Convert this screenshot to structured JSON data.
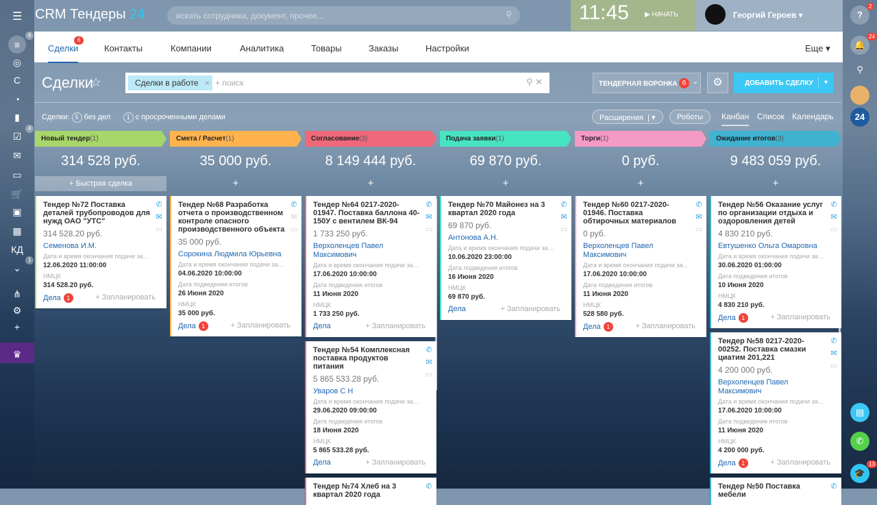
{
  "app": {
    "logo": "CRM Тендеры",
    "logo_num": "24",
    "search_placeholder": "искать сотрудника, документ, прочее...",
    "clock": "11:45",
    "start": "НАЧАТЬ",
    "user": "Георгий Героев"
  },
  "leftbar": {
    "items": [
      {
        "icon": "filter-icon",
        "badge": "6"
      },
      {
        "icon": "target-icon"
      },
      {
        "icon": "letter-c-icon",
        "label": "С"
      },
      {
        "icon": "clock-icon"
      },
      {
        "icon": "chart-icon"
      },
      {
        "icon": "tasks-icon",
        "badge": "4"
      },
      {
        "icon": "mail-icon"
      },
      {
        "icon": "cash-register-icon"
      },
      {
        "icon": "cart-icon"
      },
      {
        "icon": "window-icon"
      },
      {
        "icon": "grid-icon"
      },
      {
        "icon": "kd-icon",
        "label": "КД"
      },
      {
        "icon": "chevron-circle-icon",
        "badge": "1"
      },
      {
        "icon": "sitemap-icon"
      },
      {
        "icon": "gear-icon"
      },
      {
        "icon": "plus-icon"
      },
      {
        "icon": "crown-icon"
      }
    ]
  },
  "rightbar": {
    "help_badge": "2",
    "notif_badge": "24",
    "b24": "24",
    "bottom_badge": "13"
  },
  "tabs": {
    "items": [
      "Сделки",
      "Контакты",
      "Компании",
      "Аналитика",
      "Товары",
      "Заказы",
      "Настройки"
    ],
    "badge": "6",
    "more": "Еще"
  },
  "toolbar": {
    "title": "Сделки",
    "chip": "Сделки в работе",
    "search_placeholder": "+ поиск",
    "funnel": "ТЕНДЕРНАЯ ВОРОНКА",
    "funnel_badge": "6",
    "add": "ДОБАВИТЬ СДЕЛКУ"
  },
  "stats": {
    "label": "Сделки:",
    "no_tasks_count": "5",
    "no_tasks": "без дел",
    "overdue_count": "1",
    "overdue": "с просроченными делами"
  },
  "views": {
    "extensions": "Расширения",
    "robots": "Роботы",
    "kanban": "Канбан",
    "list": "Список",
    "calendar": "Календарь"
  },
  "labels": {
    "deadline": "Дата и время окончания подачи заявки",
    "results": "Дата подведения итогов",
    "nmck": "НМЦК",
    "tasks": "Дела",
    "plan": "+ Запланировать",
    "quick": "+ Быстрая сделка",
    "plus": "+"
  },
  "columns": [
    {
      "name": "Новый тендер",
      "count": "(1)",
      "sum": "314 528 руб.",
      "color": "#a7d66a",
      "cards": [
        {
          "title": "Тендер №72 Поставка деталей трубопроводов для нужд ОАО \"УТС\"",
          "price": "314 528.20 руб.",
          "person": "Семенова И.М.",
          "deadline": "12.06.2020 11:00:00",
          "nmck": "314 528.20 руб.",
          "tasks_badge": "1",
          "mail": true
        }
      ]
    },
    {
      "name": "Смета / Расчет",
      "count": "(1)",
      "sum": "35 000 руб.",
      "color": "#ffb34d",
      "cards": [
        {
          "title": "Тендер №68 Разработка отчета о производственном контроле опасного производственного объекта",
          "price": "35 000 руб.",
          "person": "Сорокина Людмила Юрьевна",
          "deadline": "04.06.2020 10:00:00",
          "results": "26 Июня 2020",
          "nmck": "35 000 руб.",
          "tasks_badge": "1",
          "mail": false
        }
      ]
    },
    {
      "name": "Согласование",
      "count": "(3)",
      "sum": "8 149 444 руб.",
      "color": "#f0697b",
      "cards": [
        {
          "title": "Тендер №64 0217-2020-01947. Поставка баллона 40-150У с вентилем ВК-94",
          "price": "1 733 250 руб.",
          "person": "Верхоленцев Павел Максимович",
          "deadline": "17.06.2020 10:00:00",
          "results": "11 Июня 2020",
          "nmck": "1 733 250 руб.",
          "mail": true
        },
        {
          "title": "Тендер №54 Комплексная поставка продуктов питания",
          "price": "5 865 533.28 руб.",
          "person": "Уваров С Н",
          "deadline": "29.06.2020 09:00:00",
          "results": "18 Июня 2020",
          "nmck": "5 865 533.28 руб.",
          "mail": true
        },
        {
          "title": "Тендер №74 Хлеб на 3 квартал 2020 года",
          "partial": true
        }
      ]
    },
    {
      "name": "Подача заявки",
      "count": "(1)",
      "sum": "69 870 руб.",
      "color": "#47e4c2",
      "cards": [
        {
          "title": "Тендер №70 Майонез на 3 квартал 2020 года",
          "price": "69 870 руб.",
          "person": "Антонова А.Н.",
          "deadline": "10.06.2020 23:00:00",
          "results": "16 Июня 2020",
          "nmck": "69 870 руб.",
          "mail": true
        }
      ]
    },
    {
      "name": "Торги",
      "count": "(1)",
      "sum": "0 руб.",
      "color": "#f49ac5",
      "cards": [
        {
          "title": "Тендер №60 0217-2020-01946. Поставка обтирочных материалов",
          "price": "0 руб.",
          "person": "Верхоленцев Павел Максимович",
          "deadline": "17.06.2020 10:00:00",
          "results": "11 Июня 2020",
          "nmck": "528 580 руб.",
          "tasks_badge": "1",
          "mail": true
        }
      ]
    },
    {
      "name": "Ожидание итогов",
      "count": "(3)",
      "sum": "9 483 059 руб.",
      "color": "#3fb3d0",
      "cards": [
        {
          "title": "Тендер №56 Оказание услуг по организации отдыха и оздоровления детей",
          "price": "4 830 210 руб.",
          "person": "Евтушенко Ольга Омаровна",
          "deadline": "30.06.2020 01:00:00",
          "results": "10 Июня 2020",
          "nmck": "4 830 210 руб.",
          "tasks_badge": "1",
          "mail": true
        },
        {
          "title": "Тендер №58 0217-2020-00252. Поставка смазки циатим 201,221",
          "price": "4 200 000 руб.",
          "person": "Верхоленцев Павел Максимович",
          "deadline": "17.06.2020 10:00:00",
          "results": "11 Июня 2020",
          "nmck": "4 200 000 руб.",
          "tasks_badge": "1",
          "mail": true
        },
        {
          "title": "Тендер №50 Поставка мебели",
          "partial": true
        }
      ]
    }
  ]
}
